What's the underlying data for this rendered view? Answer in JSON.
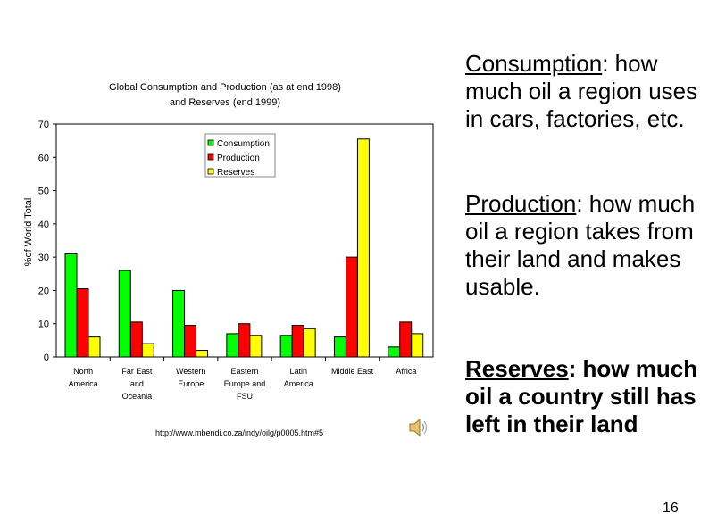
{
  "chart_data": {
    "type": "bar",
    "title_line1": "Global Consumption and Production (as at end 1998)",
    "title_line2": "and Reserves (end 1999)",
    "ylabel": "%of World Total",
    "ylim": [
      0,
      70
    ],
    "yticks": [
      0,
      10,
      20,
      30,
      40,
      50,
      60,
      70
    ],
    "categories": [
      [
        "North",
        "America"
      ],
      [
        "Far East",
        "and",
        "Oceania"
      ],
      [
        "Western",
        "Europe"
      ],
      [
        "Eastern",
        "Europe and",
        "FSU"
      ],
      [
        "Latin",
        "America"
      ],
      [
        "Middle East"
      ],
      [
        "Africa"
      ]
    ],
    "series": [
      {
        "name": "Consumption",
        "color": "#00ff00",
        "values": [
          31,
          26,
          20,
          7,
          6.5,
          6,
          3
        ]
      },
      {
        "name": "Production",
        "color": "#ff0000",
        "values": [
          20.5,
          10.5,
          9.5,
          10,
          9.5,
          30,
          10.5
        ]
      },
      {
        "name": "Reserves",
        "color": "#ffff00",
        "values": [
          6,
          4,
          2,
          6.5,
          8.5,
          65.5,
          7
        ]
      }
    ],
    "legend_position": "top-right",
    "source": "http://www.mbendi.co.za/indy/oilg/p0005.htm#5"
  },
  "notes": {
    "consumption_term": "Consumption",
    "consumption_text": ": how much oil a region uses in cars, factories, etc.",
    "production_term": "Production",
    "production_text": ": how much oil a region takes from their land and makes usable.",
    "reserves_term": "Reserves",
    "reserves_text": ": how much oil a country still has left in their land"
  },
  "page_number": "16",
  "icons": {
    "audio": "speaker-icon"
  }
}
